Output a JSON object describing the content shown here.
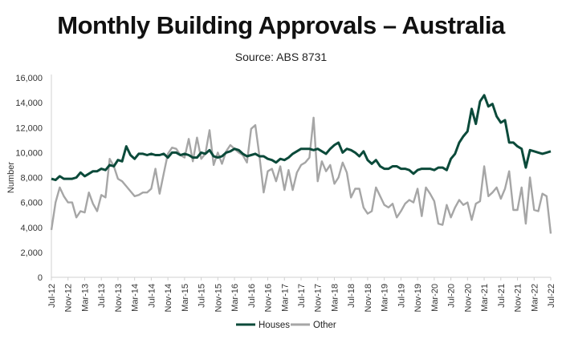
{
  "chart_data": {
    "type": "line",
    "title": "Monthly Building Approvals – Australia",
    "subtitle": "Source: ABS 8731",
    "xlabel": "",
    "ylabel": "Number",
    "ylim": [
      0,
      16000
    ],
    "y_ticks": [
      "0",
      "2,000",
      "4,000",
      "6,000",
      "8,000",
      "10,000",
      "12,000",
      "14,000",
      "16,000"
    ],
    "x_tick_labels": [
      "Jul-12",
      "Nov-12",
      "Mar-13",
      "Jul-13",
      "Nov-13",
      "Mar-14",
      "Jul-14",
      "Nov-14",
      "Mar-15",
      "Jul-15",
      "Nov-15",
      "Mar-16",
      "Jul-16",
      "Nov-16",
      "Mar-17",
      "Jul-17",
      "Nov-17",
      "Mar-18",
      "Jul-18",
      "Nov-18",
      "Mar-19",
      "Jul-19",
      "Nov-19",
      "Mar-20",
      "Jul-20",
      "Nov-20",
      "Mar-21",
      "Jul-21",
      "Nov-21",
      "Mar-22",
      "Jul-22"
    ],
    "frequency": "monthly",
    "grid": false,
    "legend_position": "bottom",
    "series": [
      {
        "name": "Houses",
        "color": "#0b4a3a",
        "values": [
          7900,
          7800,
          8100,
          7900,
          7900,
          7900,
          8000,
          8400,
          8100,
          8300,
          8500,
          8500,
          8700,
          8600,
          9000,
          8900,
          9400,
          9300,
          10500,
          9800,
          9500,
          9900,
          9900,
          9800,
          9900,
          9800,
          9800,
          9900,
          9600,
          10000,
          10000,
          9800,
          9900,
          9800,
          9600,
          9600,
          10000,
          9900,
          10200,
          9700,
          9600,
          9700,
          10000,
          10100,
          10300,
          10200,
          9900,
          9700,
          9800,
          9900,
          9700,
          9700,
          9500,
          9400,
          9200,
          9500,
          9400,
          9600,
          9900,
          10100,
          10300,
          10300,
          10300,
          10200,
          10300,
          10100,
          9900,
          10300,
          10600,
          10800,
          10000,
          10300,
          10200,
          10000,
          9700,
          10100,
          9400,
          9100,
          9400,
          8900,
          8700,
          8700,
          8900,
          8900,
          8700,
          8700,
          8600,
          8300,
          8600,
          8700,
          8700,
          8700,
          8600,
          8800,
          8800,
          8600,
          9500,
          9900,
          10800,
          11300,
          11700,
          13500,
          12300,
          14100,
          14600,
          13700,
          13900,
          12900,
          12400,
          12600,
          10800,
          10800,
          10500,
          10300,
          8800,
          10200,
          10100,
          10000,
          9900,
          10000,
          10100
        ]
      },
      {
        "name": "Other",
        "color": "#a6a6a6",
        "values": [
          3800,
          6000,
          7200,
          6500,
          6000,
          6000,
          4800,
          5300,
          5200,
          6800,
          5900,
          5300,
          6600,
          6400,
          9500,
          8900,
          7900,
          7700,
          7300,
          6900,
          6500,
          6600,
          6800,
          6800,
          7100,
          8700,
          6700,
          8300,
          9900,
          10400,
          10300,
          9800,
          9600,
          11100,
          9300,
          11200,
          9500,
          9900,
          11800,
          9000,
          10000,
          9100,
          10100,
          10600,
          10300,
          10000,
          9800,
          9200,
          11900,
          12200,
          9700,
          6800,
          8500,
          8700,
          7700,
          8900,
          7000,
          8600,
          7000,
          8400,
          9000,
          9200,
          9600,
          12800,
          7700,
          9300,
          8500,
          9000,
          7500,
          8000,
          9200,
          8400,
          6400,
          7100,
          7100,
          5600,
          5100,
          5300,
          7200,
          6500,
          5800,
          5600,
          5900,
          4800,
          5300,
          5900,
          6200,
          6000,
          7100,
          4900,
          7200,
          6700,
          6100,
          4300,
          4200,
          5800,
          4800,
          5600,
          6200,
          5800,
          6000,
          4600,
          5900,
          6100,
          8900,
          6500,
          6800,
          7200,
          6300,
          7100,
          8500,
          5400,
          5400,
          7200,
          4300,
          8000,
          5400,
          5300,
          6700,
          6500,
          3500
        ]
      }
    ]
  }
}
